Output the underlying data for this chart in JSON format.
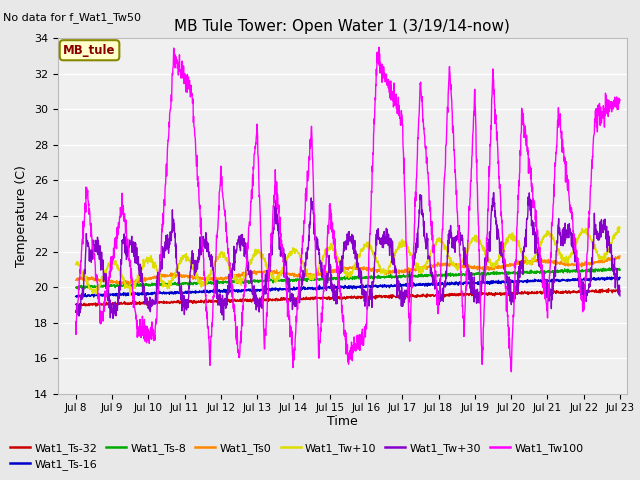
{
  "title": "MB Tule Tower: Open Water 1 (3/19/14-now)",
  "subtitle": "No data for f_Wat1_Tw50",
  "xlabel": "Time",
  "ylabel": "Temperature (C)",
  "ylim": [
    14,
    34
  ],
  "yticks": [
    14,
    16,
    18,
    20,
    22,
    24,
    26,
    28,
    30,
    32,
    34
  ],
  "xlim_days": [
    7.5,
    23.2
  ],
  "xtick_days": [
    8,
    9,
    10,
    11,
    12,
    13,
    14,
    15,
    16,
    17,
    18,
    19,
    20,
    21,
    22,
    23
  ],
  "xtick_labels": [
    "Jul 8",
    "Jul 9",
    "Jul 10",
    "Jul 11",
    "Jul 12",
    "Jul 13",
    "Jul 14",
    "Jul 15",
    "Jul 16",
    "Jul 17",
    "Jul 18",
    "Jul 19",
    "Jul 20",
    "Jul 21",
    "Jul 22",
    "Jul 23"
  ],
  "bg_color": "#e8e8e8",
  "plot_bg_color": "#f0f0f0",
  "line_colors": {
    "Wat1_Ts-32": "#cc0000",
    "Wat1_Ts-16": "#0000cc",
    "Wat1_Ts-8": "#00aa00",
    "Wat1_Ts0": "#ff8800",
    "Wat1_Tw+10": "#dddd00",
    "Wat1_Tw+30": "#8800cc",
    "Wat1_Tw100": "#ff00ff"
  },
  "legend_box_color": "#ffffcc",
  "legend_box_edge": "#888800",
  "legend_box_text": "#880000",
  "legend_box_label": "MB_tule"
}
